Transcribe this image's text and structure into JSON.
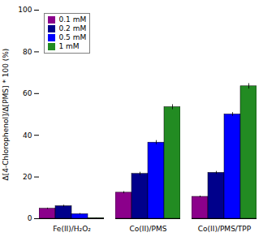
{
  "chart_data": {
    "type": "bar",
    "categories": [
      "Fe(II)/H₂O₂",
      "Co(II)/PMS",
      "Co(II)/PMS/TPP"
    ],
    "series": [
      {
        "name": "0.1 mM",
        "color": "#8B008B",
        "values": [
          4.8,
          12.5,
          10.5
        ],
        "errors": [
          0.3,
          0.5,
          0.4
        ]
      },
      {
        "name": "0.2 mM",
        "color": "#00008B",
        "values": [
          6.0,
          21.5,
          22.0
        ],
        "errors": [
          0.5,
          0.8,
          0.7
        ]
      },
      {
        "name": "0.5 mM",
        "color": "#0000FF",
        "values": [
          2.2,
          36.5,
          50.0
        ],
        "errors": [
          0.3,
          1.0,
          0.9
        ]
      },
      {
        "name": "1 mM",
        "color": "#228B22",
        "values": [
          0.3,
          53.5,
          63.5
        ],
        "errors": [
          0.1,
          1.2,
          1.3
        ]
      }
    ],
    "ylabel": "Δ[4-Chlorophenol]/Δ[PMS] * 100 (%)",
    "ylim": [
      0,
      100
    ],
    "yticks": [
      0,
      20,
      40,
      60,
      80,
      100
    ],
    "legend": "upper left"
  }
}
